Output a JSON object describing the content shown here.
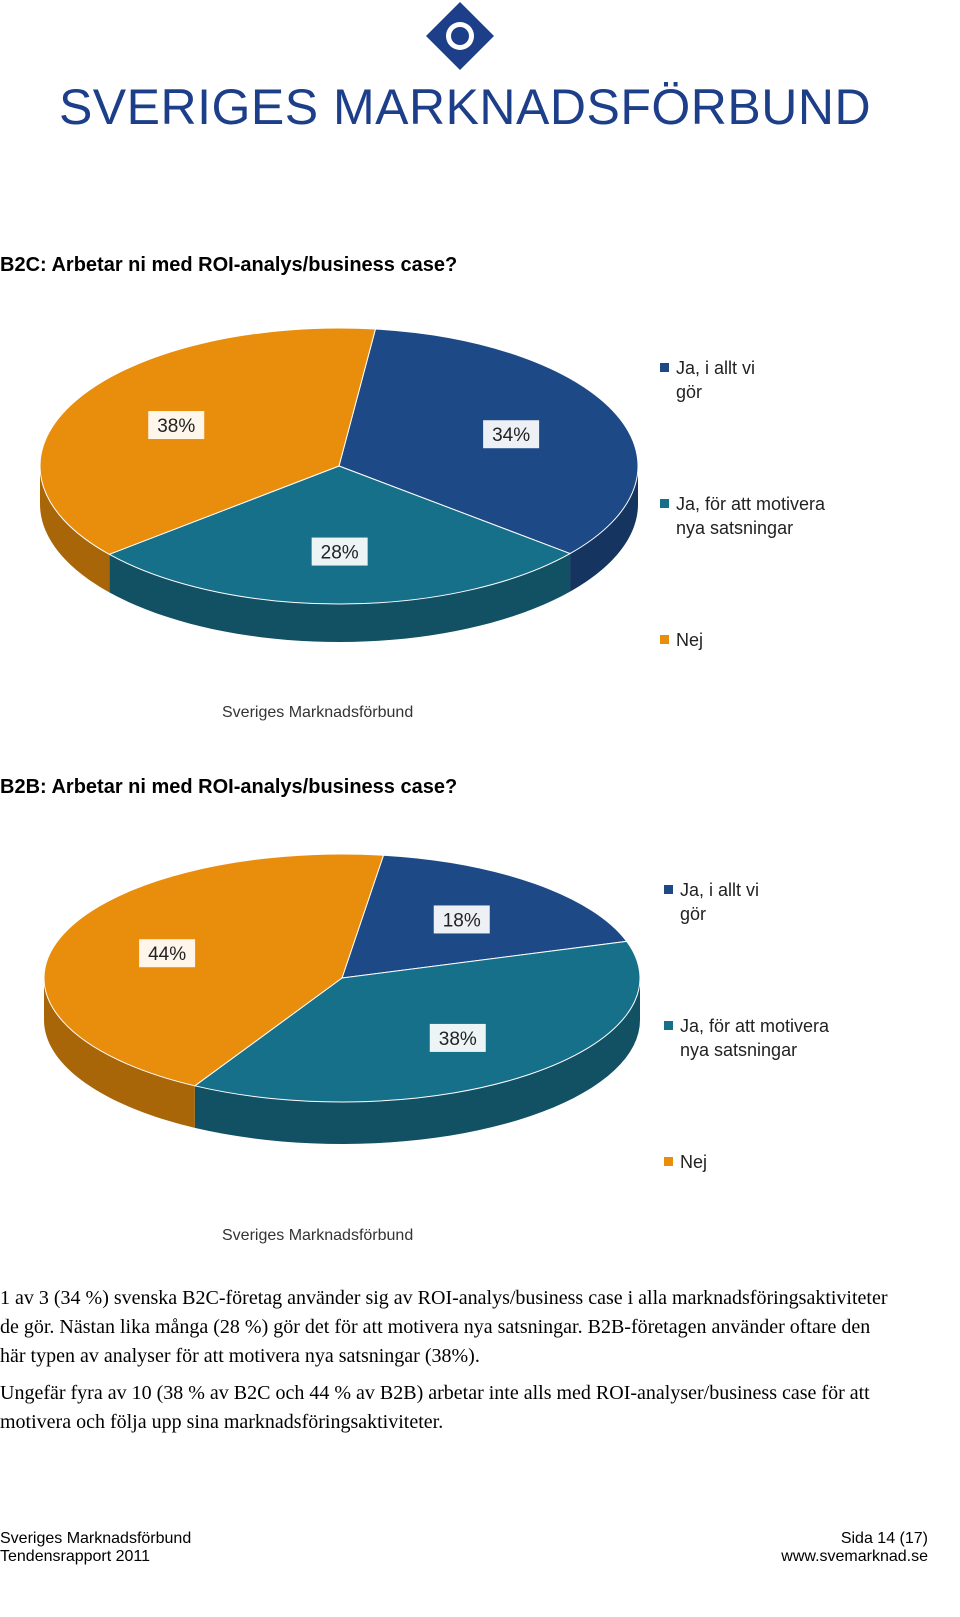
{
  "header": {
    "logo_text": "SVERIGES MARKNADSFÖRBUND"
  },
  "chart_data": [
    {
      "type": "pie",
      "title": "B2C: Arbetar ni med ROI-analys/business case?",
      "source": "Sveriges Marknadsförbund",
      "categories": [
        "Ja, i allt vi gör",
        "Ja, för att motivera nya satsningar",
        "Nej"
      ],
      "values": [
        34,
        28,
        38
      ],
      "value_labels": [
        "34%",
        "28%",
        "38%"
      ],
      "colors": [
        "#1d4a86",
        "#17708a",
        "#e98d0c"
      ]
    },
    {
      "type": "pie",
      "title": "B2B: Arbetar ni med ROI-analys/business case?",
      "source": "Sveriges Marknadsförbund",
      "categories": [
        "Ja, i allt vi gör",
        "Ja, för att motivera nya satsningar",
        "Nej"
      ],
      "values": [
        18,
        38,
        44
      ],
      "value_labels": [
        "18%",
        "38%",
        "44%"
      ],
      "colors": [
        "#1d4a86",
        "#17708a",
        "#e98d0c"
      ]
    }
  ],
  "body": {
    "paragraphs": [
      "1 av 3 (34 %) svenska B2C-företag använder sig av ROI-analys/business case i alla marknadsföringsaktiviteter de gör. Nästan lika många (28 %) gör det för att motivera nya satsningar. B2B-företagen använder oftare den här typen av analyser för att motivera nya satsningar (38%).",
      "Ungefär fyra av 10 (38 % av B2C och 44 % av B2B) arbetar inte alls med ROI-analyser/business case för att motivera och följa upp sina marknadsföringsaktiviteter."
    ]
  },
  "footer": {
    "left": [
      "Sveriges Marknadsförbund",
      "Tendensrapport 2011"
    ],
    "right": [
      "Sida 14 (17)",
      "www.svemarknad.se"
    ]
  }
}
